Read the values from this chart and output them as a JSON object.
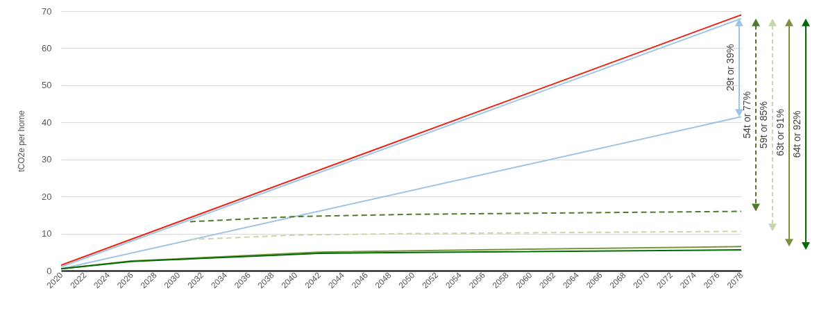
{
  "chart_data": {
    "type": "line",
    "ylabel": "tCO2e per home",
    "xlim": [
      2020,
      2078
    ],
    "xticks": [
      2020,
      2022,
      2024,
      2026,
      2028,
      2030,
      2032,
      2034,
      2036,
      2038,
      2040,
      2042,
      2044,
      2046,
      2048,
      2050,
      2052,
      2054,
      2056,
      2058,
      2060,
      2062,
      2064,
      2066,
      2068,
      2070,
      2072,
      2074,
      2076,
      2078
    ],
    "ylim": [
      0,
      70
    ],
    "yticks": [
      0,
      10,
      20,
      30,
      40,
      50,
      60,
      70
    ],
    "grid": "y",
    "line_style": "solid",
    "marker": "none",
    "series": [
      {
        "color": "#9dc3e6",
        "x": [
          2020,
          2078
        ],
        "values": [
          1,
          68
        ]
      },
      {
        "color": "#9dc3e6",
        "x": [
          2020,
          2078
        ],
        "values": [
          0.5,
          41.5
        ]
      },
      {
        "color": "#4f7a28",
        "line_style": "dashed",
        "x": [
          2031,
          2040,
          2050,
          2078
        ],
        "values": [
          13.2,
          14.6,
          15.2,
          16
        ]
      },
      {
        "color": "#c5d9a8",
        "line_style": "dashed",
        "x": [
          2031,
          2040,
          2050,
          2078
        ],
        "values": [
          8.4,
          9.6,
          10,
          10.6
        ]
      },
      {
        "color": "#77933c",
        "x": [
          2020,
          2026,
          2042,
          2060,
          2078
        ],
        "values": [
          0.5,
          2.6,
          5,
          5.8,
          6.5
        ]
      },
      {
        "color": "#006b00",
        "x": [
          2020,
          2026,
          2032,
          2038,
          2042,
          2050,
          2078
        ],
        "values": [
          0.5,
          2.5,
          3.3,
          4.1,
          4.7,
          4.9,
          5.6
        ]
      },
      {
        "color": "#ee2211",
        "x": [
          2020,
          2078
        ],
        "values": [
          1.5,
          69
        ]
      }
    ],
    "annotations": [
      "29t or 39%",
      "54t or 77%",
      "59t or 85%",
      "63t or 91%",
      "64t or 92%"
    ]
  }
}
